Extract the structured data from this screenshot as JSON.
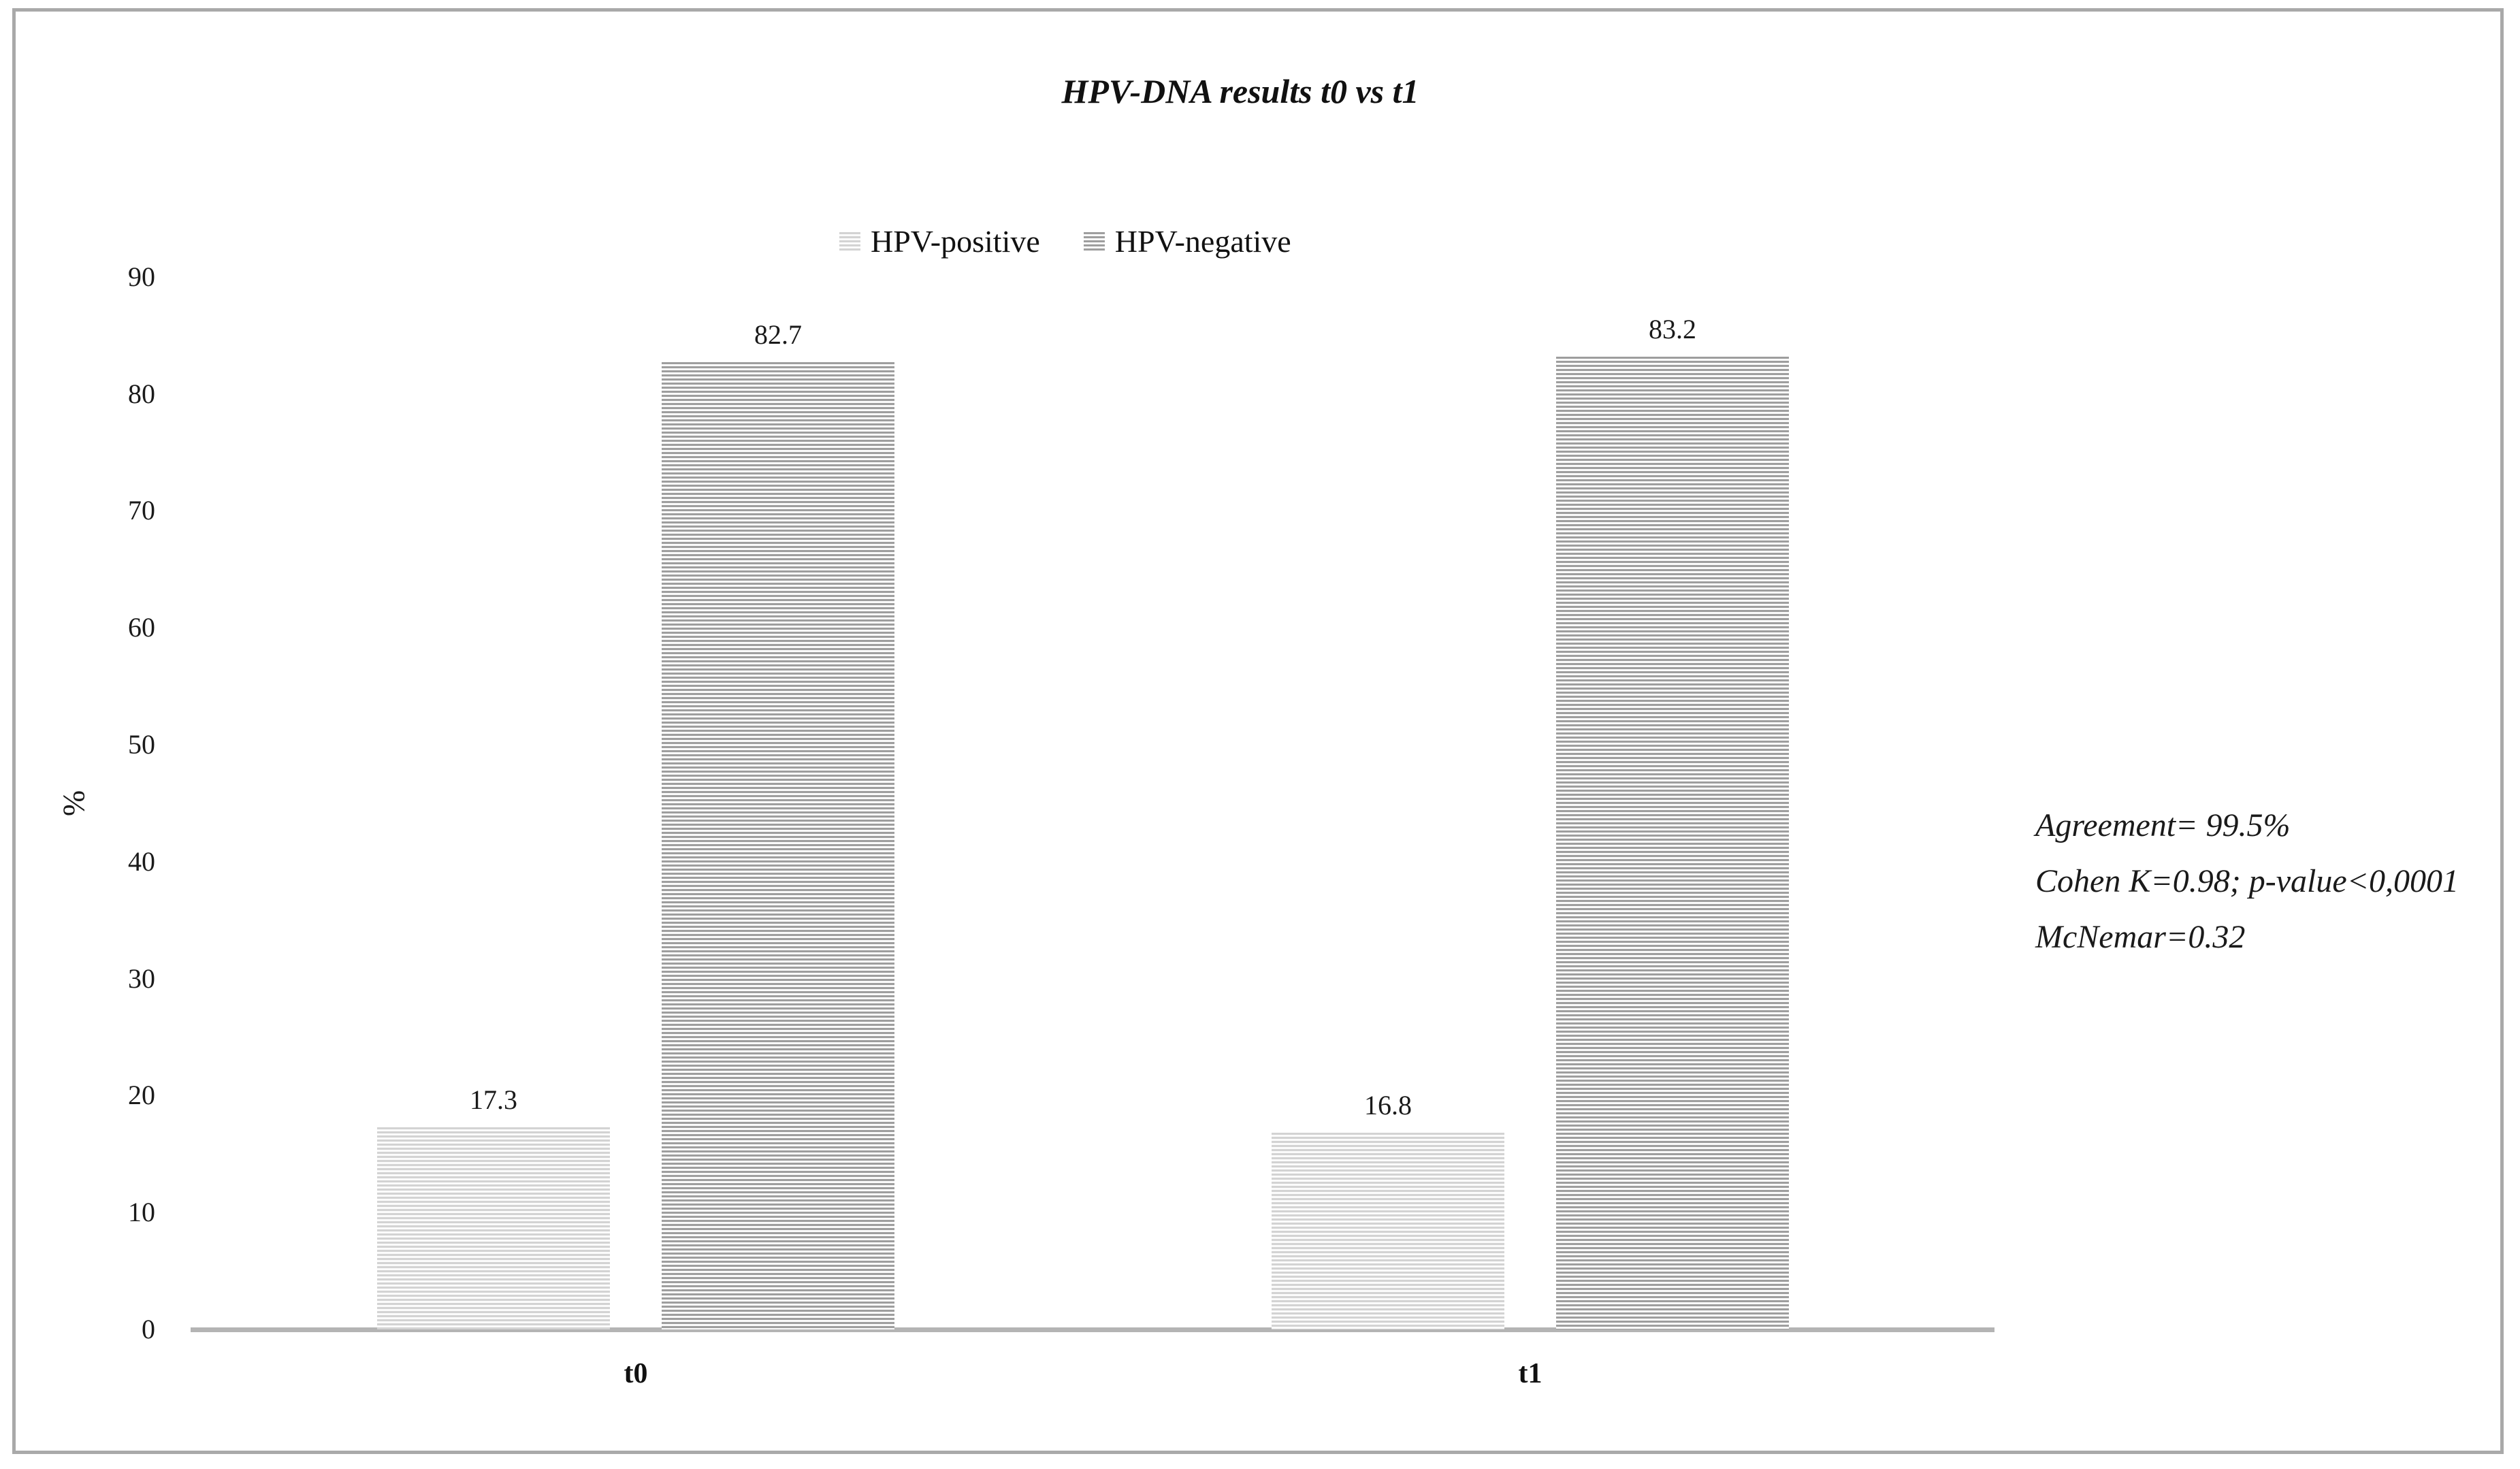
{
  "figure": {
    "border_color": "#a9a9a9",
    "background": "#ffffff"
  },
  "chart_data": {
    "type": "bar",
    "title": "HPV-DNA results t0 vs t1",
    "categories": [
      "t0",
      "t1"
    ],
    "series": [
      {
        "name": "HPV-positive",
        "values": [
          17.3,
          16.8
        ],
        "pattern": "horizontal-stripes-light-gray"
      },
      {
        "name": "HPV-negative",
        "values": [
          82.7,
          83.2
        ],
        "pattern": "horizontal-stripes-dark-gray"
      }
    ],
    "xlabel": "",
    "ylabel": "%",
    "ylim": [
      0,
      90
    ],
    "yticks": [
      0,
      10,
      20,
      30,
      40,
      50,
      60,
      70,
      80,
      90
    ],
    "grid": false,
    "legend_position": "top-center",
    "bar_value_labels": [
      "17.3",
      "82.7",
      "16.8",
      "83.2"
    ],
    "annotations": [
      "Agreement= 99.5%",
      "Cohen K=0.98; p-value<0,0001",
      "McNemar=0.32"
    ],
    "colors": {
      "positive_stripe": "#d3d3d3",
      "negative_stripe": "#9e9e9e",
      "axis_line": "#b4b4b4",
      "text": "#1a1a1a"
    }
  }
}
